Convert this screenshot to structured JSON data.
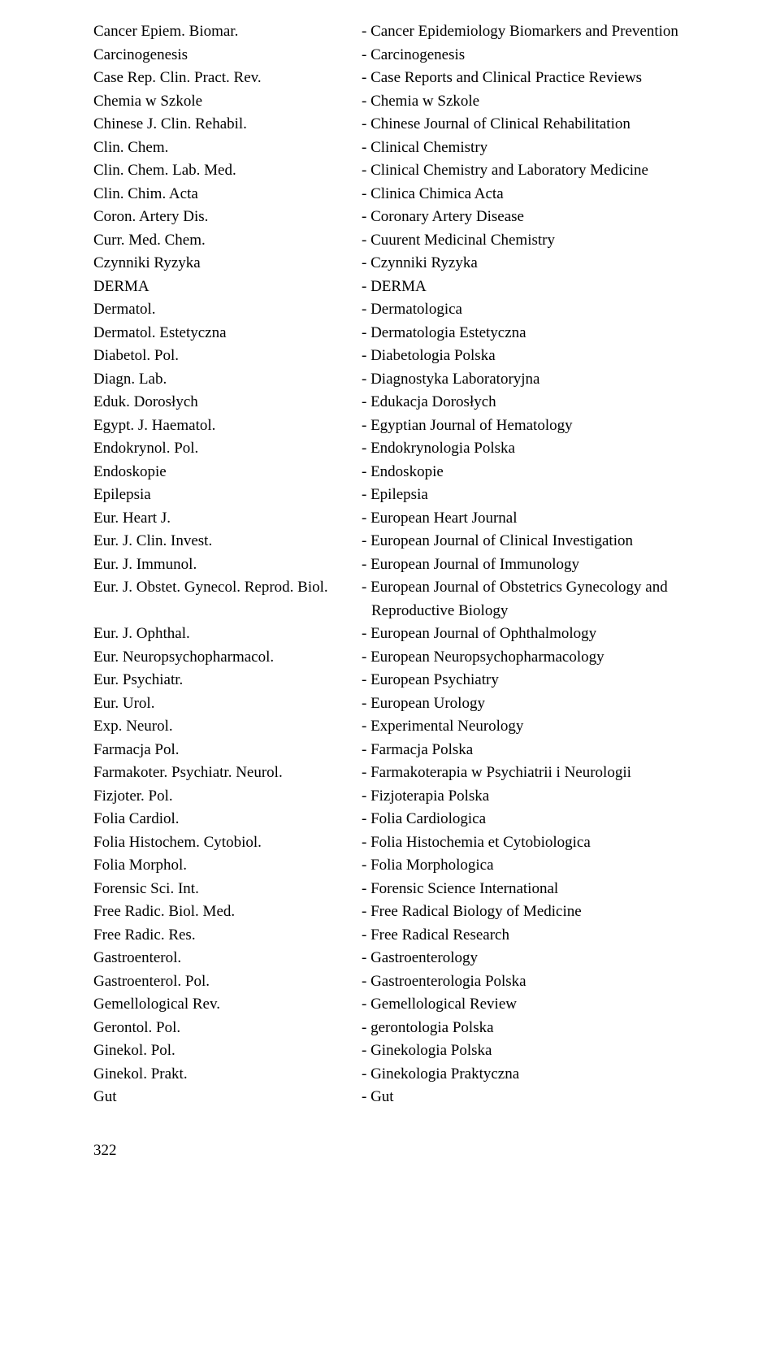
{
  "entries": [
    {
      "abbr": "Cancer Epiem. Biomar.",
      "full": "- Cancer Epidemiology Biomarkers and Prevention"
    },
    {
      "abbr": "Carcinogenesis",
      "full": "- Carcinogenesis"
    },
    {
      "abbr": "Case Rep. Clin. Pract. Rev.",
      "full": "- Case Reports and Clinical Practice Reviews"
    },
    {
      "abbr": "Chemia w Szkole",
      "full": "- Chemia w Szkole"
    },
    {
      "abbr": "Chinese J. Clin. Rehabil.",
      "full": "- Chinese Journal of Clinical Rehabilitation"
    },
    {
      "abbr": "Clin. Chem.",
      "full": "- Clinical Chemistry"
    },
    {
      "abbr": "Clin. Chem. Lab. Med.",
      "full": "- Clinical Chemistry and Laboratory Medicine"
    },
    {
      "abbr": "Clin. Chim. Acta",
      "full": "- Clinica Chimica Acta"
    },
    {
      "abbr": "Coron. Artery Dis.",
      "full": "- Coronary Artery Disease"
    },
    {
      "abbr": "Curr. Med. Chem.",
      "full": "- Cuurent Medicinal Chemistry"
    },
    {
      "abbr": "Czynniki Ryzyka",
      "full": "- Czynniki Ryzyka"
    },
    {
      "abbr": "DERMA",
      "full": "- DERMA"
    },
    {
      "abbr": "Dermatol.",
      "full": "- Dermatologica"
    },
    {
      "abbr": "Dermatol. Estetyczna",
      "full": "- Dermatologia Estetyczna"
    },
    {
      "abbr": "Diabetol. Pol.",
      "full": "- Diabetologia Polska"
    },
    {
      "abbr": "Diagn. Lab.",
      "full": "- Diagnostyka Laboratoryjna"
    },
    {
      "abbr": "Eduk. Dorosłych",
      "full": "- Edukacja Dorosłych"
    },
    {
      "abbr": "Egypt. J. Haematol.",
      "full": "- Egyptian Journal of Hematology"
    },
    {
      "abbr": "Endokrynol. Pol.",
      "full": "- Endokrynologia Polska"
    },
    {
      "abbr": "Endoskopie",
      "full": "- Endoskopie"
    },
    {
      "abbr": "Epilepsia",
      "full": "- Epilepsia"
    },
    {
      "abbr": "Eur. Heart J.",
      "full": "- European Heart Journal"
    },
    {
      "abbr": "Eur. J. Clin. Invest.",
      "full": "- European Journal of Clinical Investigation"
    },
    {
      "abbr": "Eur. J. Immunol.",
      "full": "- European Journal of Immunology"
    },
    {
      "abbr": "Eur. J. Obstet. Gynecol. Reprod. Biol.",
      "full": "- European Journal of Obstetrics Gynecology and",
      "continuation": "Reproductive Biology"
    },
    {
      "abbr": "Eur. J. Ophthal.",
      "full": "- European Journal of Ophthalmology"
    },
    {
      "abbr": "Eur. Neuropsychopharmacol.",
      "full": "- European Neuropsychopharmacology"
    },
    {
      "abbr": "Eur. Psychiatr.",
      "full": "- European Psychiatry"
    },
    {
      "abbr": "Eur. Urol.",
      "full": "- European Urology"
    },
    {
      "abbr": "Exp. Neurol.",
      "full": "- Experimental Neurology"
    },
    {
      "abbr": "Farmacja Pol.",
      "full": "- Farmacja Polska"
    },
    {
      "abbr": "Farmakoter. Psychiatr. Neurol.",
      "full": "- Farmakoterapia w Psychiatrii i Neurologii"
    },
    {
      "abbr": "Fizjoter. Pol.",
      "full": "- Fizjoterapia Polska"
    },
    {
      "abbr": "Folia Cardiol.",
      "full": "- Folia Cardiologica"
    },
    {
      "abbr": "Folia Histochem. Cytobiol.",
      "full": "- Folia Histochemia et Cytobiologica"
    },
    {
      "abbr": "Folia Morphol.",
      "full": "- Folia Morphologica"
    },
    {
      "abbr": "Forensic Sci. Int.",
      "full": "- Forensic Science International"
    },
    {
      "abbr": "Free Radic. Biol. Med.",
      "full": "- Free Radical Biology of Medicine"
    },
    {
      "abbr": "Free Radic. Res.",
      "full": "- Free Radical Research"
    },
    {
      "abbr": "Gastroenterol.",
      "full": "- Gastroenterology"
    },
    {
      "abbr": "Gastroenterol. Pol.",
      "full": "- Gastroenterologia Polska"
    },
    {
      "abbr": "Gemellological Rev.",
      "full": "- Gemellological Review"
    },
    {
      "abbr": "Gerontol. Pol.",
      "full": "- gerontologia Polska"
    },
    {
      "abbr": "Ginekol. Pol.",
      "full": "- Ginekologia Polska"
    },
    {
      "abbr": "Ginekol. Prakt.",
      "full": "- Ginekologia Praktyczna"
    },
    {
      "abbr": "Gut",
      "full": "- Gut"
    }
  ],
  "page_number": "322"
}
